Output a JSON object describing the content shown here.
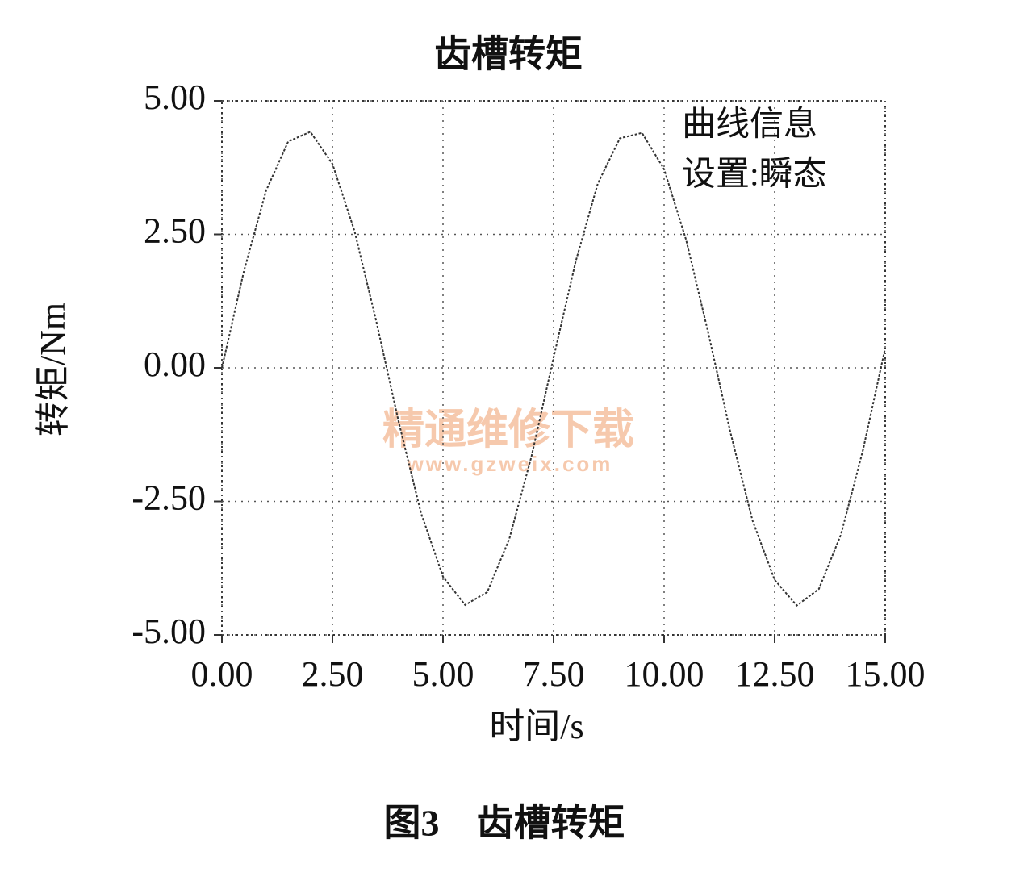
{
  "chart_data": {
    "type": "line",
    "title": "齿槽转矩",
    "x_label": "时间/s",
    "y_label": "转矩/Nm",
    "annotations": [
      "曲线信息",
      "设置:瞬态"
    ],
    "caption": "图3　齿槽转矩",
    "watermark": [
      "精通维修下载",
      "www.gzweix.com"
    ],
    "x": [
      0,
      0.5,
      1,
      1.5,
      2,
      2.5,
      3,
      3.5,
      4,
      4.5,
      5,
      5.5,
      6,
      6.5,
      7,
      7.5,
      8,
      8.5,
      9,
      9.5,
      10,
      10.5,
      11,
      11.5,
      12,
      12.5,
      13,
      13.5,
      14,
      14.5,
      15
    ],
    "series": [
      {
        "color": "#333333",
        "values": [
          0,
          1.82,
          3.32,
          4.24,
          4.42,
          3.82,
          2.56,
          0.84,
          -1.02,
          -2.71,
          -3.91,
          -4.44,
          -4.2,
          -3.2,
          -1.66,
          0.19,
          1.99,
          3.45,
          4.3,
          4.4,
          3.72,
          2.39,
          0.65,
          -1.21,
          -2.86,
          -3.97,
          -4.45,
          -4.14,
          -3.12,
          -1.53,
          0.37
        ]
      }
    ],
    "xlim": [
      0,
      15
    ],
    "xticks": [
      {
        "value": 0,
        "label": "0.00"
      },
      {
        "value": 2.5,
        "label": "2.50"
      },
      {
        "value": 5,
        "label": "5.00"
      },
      {
        "value": 7.5,
        "label": "7.50"
      },
      {
        "value": 10,
        "label": "10.00"
      },
      {
        "value": 12.5,
        "label": "12.50"
      },
      {
        "value": 15,
        "label": "15.00"
      }
    ],
    "ylim": [
      -5,
      5
    ],
    "yticks": [
      {
        "value": -5,
        "label": "-5.00"
      },
      {
        "value": -2.5,
        "label": "-2.50"
      },
      {
        "value": 0,
        "label": "0.00"
      },
      {
        "value": 2.5,
        "label": "2.50"
      },
      {
        "value": 5,
        "label": "5.00"
      }
    ],
    "grid": true
  }
}
